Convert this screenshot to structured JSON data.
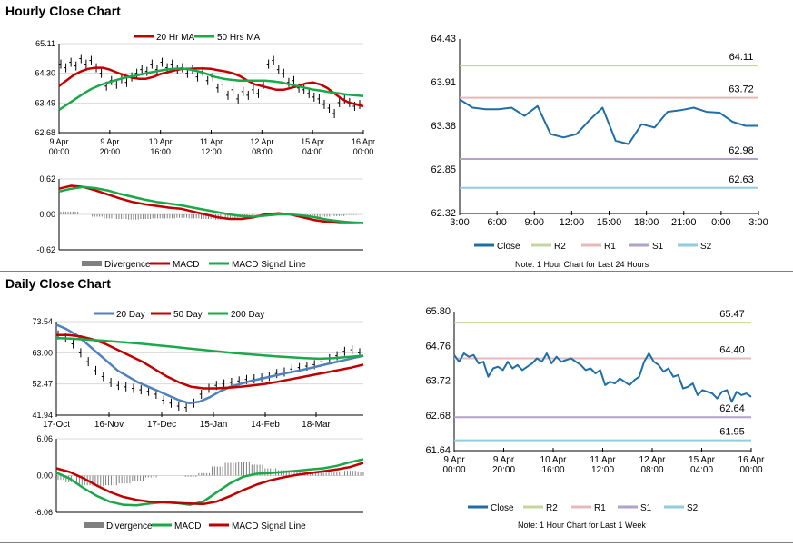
{
  "sections": {
    "hourly_title": "Hourly Close Chart",
    "daily_title": "Daily Close Chart"
  },
  "notes": {
    "hourly": "Note: 1 Hour Chart for Last 24 Hours",
    "daily": "Note: 1 Hour Chart for Last 1 Week"
  },
  "colors": {
    "red": "#c00000",
    "green": "#1aa84a",
    "blue": "#4f81bd",
    "black": "#000000",
    "divergence": "#808080",
    "close": "#1f6ea8",
    "r2": "#c3d69b",
    "r1": "#e6b9b8",
    "s1": "#b3a2c7",
    "s2": "#93cddd"
  },
  "chart_data": [
    {
      "id": "hourly_price",
      "type": "line",
      "legend": [
        "20 Hr MA",
        "50 Hrs MA"
      ],
      "legend_position": "top",
      "ylim": [
        62.68,
        65.11
      ],
      "yticks": [
        "65.11",
        "64.30",
        "63.49",
        "62.68"
      ],
      "xticks": [
        [
          "9 Apr",
          "00:00"
        ],
        [
          "9 Apr",
          "20:00"
        ],
        [
          "10 Apr",
          "16:00"
        ],
        [
          "11 Apr",
          "12:00"
        ],
        [
          "12 Apr",
          "08:00"
        ],
        [
          "15 Apr",
          "04:00"
        ],
        [
          "16 Apr",
          "00:00"
        ]
      ],
      "price": [
        64.55,
        64.45,
        64.6,
        64.5,
        64.7,
        64.55,
        64.65,
        64.45,
        64.3,
        63.95,
        64.1,
        64.0,
        64.15,
        64.05,
        64.2,
        64.3,
        64.4,
        64.35,
        64.55,
        64.4,
        64.6,
        64.45,
        64.55,
        64.4,
        64.45,
        64.3,
        64.4,
        64.2,
        64.35,
        64.1,
        64.2,
        63.9,
        64.0,
        63.7,
        63.85,
        63.6,
        63.8,
        63.7,
        63.85,
        63.75,
        64.0,
        64.55,
        64.65,
        64.4,
        64.3,
        64.05,
        64.1,
        63.9,
        63.85,
        63.75,
        63.65,
        63.6,
        63.45,
        63.35,
        63.2,
        63.5,
        63.6,
        63.5,
        63.4,
        63.45
      ],
      "series": [
        {
          "name": "20 Hr MA",
          "values": [
            63.95,
            64.1,
            64.25,
            64.35,
            64.42,
            64.45,
            64.45,
            64.4,
            64.32,
            64.25,
            64.18,
            64.15,
            64.15,
            64.2,
            64.28,
            64.33,
            64.38,
            64.42,
            64.42,
            64.43,
            64.43,
            64.42,
            64.38,
            64.35,
            64.3,
            64.22,
            64.1,
            64.0,
            63.95,
            63.9,
            63.85,
            63.85,
            63.9,
            63.95,
            64.02,
            64.05,
            64.0,
            63.9,
            63.75,
            63.6,
            63.5,
            63.45,
            63.4
          ]
        },
        {
          "name": "50 Hrs MA",
          "values": [
            63.3,
            63.45,
            63.6,
            63.75,
            63.88,
            63.98,
            64.05,
            64.12,
            64.18,
            64.22,
            64.27,
            64.32,
            64.36,
            64.4,
            64.42,
            64.43,
            64.4,
            64.35,
            64.28,
            64.2,
            64.15,
            64.12,
            64.1,
            64.1,
            64.1,
            64.1,
            64.08,
            64.05,
            64.0,
            63.95,
            63.9,
            63.85,
            63.82,
            63.78,
            63.75,
            63.72,
            63.7,
            63.68
          ]
        }
      ]
    },
    {
      "id": "hourly_macd",
      "type": "line",
      "legend": [
        "Divergence",
        "MACD",
        "MACD Signal Line"
      ],
      "legend_position": "bottom",
      "ylim": [
        -0.62,
        0.62
      ],
      "yticks": [
        "0.62",
        "0.00",
        "-0.62"
      ],
      "series": [
        {
          "name": "MACD",
          "values": [
            0.45,
            0.5,
            0.48,
            0.42,
            0.35,
            0.28,
            0.22,
            0.18,
            0.15,
            0.12,
            0.1,
            0.05,
            0.0,
            -0.05,
            -0.08,
            -0.08,
            -0.05,
            0.0,
            0.02,
            0.0,
            -0.05,
            -0.1,
            -0.13,
            -0.15,
            -0.15,
            -0.15
          ]
        },
        {
          "name": "MACD Signal Line",
          "values": [
            0.4,
            0.45,
            0.48,
            0.46,
            0.42,
            0.36,
            0.31,
            0.26,
            0.22,
            0.19,
            0.16,
            0.12,
            0.08,
            0.04,
            0.0,
            -0.03,
            -0.04,
            -0.02,
            0.0,
            0.0,
            -0.02,
            -0.05,
            -0.09,
            -0.12,
            -0.14,
            -0.15
          ]
        }
      ],
      "divergence": [
        0.05,
        0.05,
        0.0,
        -0.04,
        -0.07,
        -0.08,
        -0.09,
        -0.08,
        -0.07,
        -0.07,
        -0.06,
        -0.07,
        -0.08,
        -0.09,
        -0.08,
        -0.05,
        -0.01,
        0.02,
        0.02,
        0.0,
        -0.03,
        -0.05,
        -0.04,
        -0.03,
        -0.01,
        0.0
      ]
    },
    {
      "id": "hourly_levels",
      "type": "line",
      "ylim": [
        62.32,
        64.43
      ],
      "yticks": [
        "64.43",
        "63.91",
        "63.38",
        "62.85",
        "62.32"
      ],
      "xticks": [
        "3:00",
        "6:00",
        "9:00",
        "12:00",
        "15:00",
        "18:00",
        "21:00",
        "0:00",
        "3:00"
      ],
      "levels": [
        {
          "name": "R2",
          "value": 64.11,
          "label": "64.11"
        },
        {
          "name": "R1",
          "value": 63.72,
          "label": "63.72"
        },
        {
          "name": "S1",
          "value": 62.98,
          "label": "62.98"
        },
        {
          "name": "S2",
          "value": 62.63,
          "label": "62.63"
        }
      ],
      "series": [
        {
          "name": "Close",
          "values": [
            63.7,
            63.6,
            63.58,
            63.58,
            63.6,
            63.5,
            63.62,
            63.28,
            63.24,
            63.28,
            63.45,
            63.6,
            63.2,
            63.16,
            63.4,
            63.36,
            63.55,
            63.57,
            63.6,
            63.55,
            63.54,
            63.43,
            63.38,
            63.38
          ]
        }
      ],
      "legend": [
        "Close",
        "R2",
        "R1",
        "S1",
        "S2"
      ],
      "legend_position": "bottom"
    },
    {
      "id": "daily_price",
      "type": "line",
      "legend": [
        "20 Day",
        "50 Day",
        "200 Day"
      ],
      "legend_position": "top",
      "ylim": [
        41.94,
        73.54
      ],
      "yticks": [
        "73.54",
        "63.00",
        "52.47",
        "41.94"
      ],
      "xticks": [
        "17-Oct",
        "16-Nov",
        "17-Dec",
        "15-Jan",
        "14-Feb",
        "18-Mar"
      ],
      "price": [
        69,
        68,
        66,
        63,
        60,
        57,
        55,
        53,
        52,
        51.5,
        51,
        50.5,
        50,
        49,
        47,
        46,
        45,
        44.5,
        46,
        49,
        51,
        52,
        52.5,
        53,
        53.5,
        54,
        54.2,
        54.5,
        55,
        56,
        56.5,
        57.5,
        58,
        58.5,
        59,
        60,
        61,
        62,
        63.5,
        64,
        63
      ],
      "series": [
        {
          "name": "20 Day",
          "values": [
            72.5,
            71,
            69,
            66,
            63,
            60,
            57,
            55,
            53,
            51.5,
            50,
            48.5,
            47,
            46,
            46.5,
            48,
            50,
            51.5,
            52.5,
            53.5,
            54.2,
            55,
            55.8,
            56.5,
            57.2,
            58,
            58.8,
            59.6,
            60.4,
            61.2,
            62
          ]
        },
        {
          "name": "50 Day",
          "values": [
            69,
            69,
            68.5,
            67.5,
            66,
            64,
            62,
            60,
            57.5,
            55,
            53,
            51.5,
            51,
            51,
            51.2,
            51.5,
            52,
            52.5,
            53.2,
            54,
            54.8,
            55.6,
            56.4,
            57.2,
            58,
            59
          ]
        },
        {
          "name": "200 Day",
          "values": [
            68,
            67.8,
            67.5,
            67.2,
            66.8,
            66.4,
            66,
            65.5,
            65,
            64.5,
            64,
            63.5,
            63,
            62.6,
            62.2,
            61.8,
            61.5,
            61.2,
            61,
            61.2,
            61.6,
            62
          ]
        }
      ]
    },
    {
      "id": "daily_macd",
      "type": "line",
      "legend": [
        "Divergence",
        "MACD",
        "MACD Signal Line"
      ],
      "legend_position": "bottom",
      "ylim": [
        -6.06,
        6.06
      ],
      "yticks": [
        "6.06",
        "0.00",
        "-6.06"
      ],
      "series": [
        {
          "name": "MACD",
          "values": [
            0.5,
            -0.5,
            -2,
            -3.3,
            -4.3,
            -4.8,
            -4.9,
            -4.6,
            -4.4,
            -4.5,
            -4.8,
            -4.3,
            -2.8,
            -1.3,
            -0.2,
            0.3,
            0.4,
            0.6,
            0.8,
            1.0,
            1.2,
            1.6,
            2.2,
            2.7
          ]
        },
        {
          "name": "MACD Signal Line",
          "values": [
            1.2,
            0.6,
            -0.4,
            -1.6,
            -2.7,
            -3.5,
            -4.0,
            -4.3,
            -4.4,
            -4.5,
            -4.6,
            -4.7,
            -4.3,
            -3.4,
            -2.4,
            -1.5,
            -0.8,
            -0.3,
            0.1,
            0.4,
            0.7,
            1.0,
            1.4,
            2.1
          ]
        }
      ],
      "divergence": [
        -0.7,
        -1.1,
        -1.6,
        -1.7,
        -1.6,
        -1.3,
        -0.9,
        -0.3,
        0.0,
        0.0,
        -0.2,
        0.4,
        1.5,
        2.1,
        2.2,
        1.8,
        1.2,
        0.9,
        0.7,
        0.6,
        0.5,
        0.6,
        0.8,
        0.6
      ]
    },
    {
      "id": "daily_levels",
      "type": "line",
      "ylim": [
        61.64,
        65.8
      ],
      "yticks": [
        "65.80",
        "64.76",
        "63.72",
        "62.68",
        "61.64"
      ],
      "xticks": [
        [
          "9 Apr",
          "00:00"
        ],
        [
          "9 Apr",
          "20:00"
        ],
        [
          "10 Apr",
          "16:00"
        ],
        [
          "11 Apr",
          "12:00"
        ],
        [
          "12 Apr",
          "08:00"
        ],
        [
          "15 Apr",
          "04:00"
        ],
        [
          "16 Apr",
          "00:00"
        ]
      ],
      "levels": [
        {
          "name": "R2",
          "value": 65.47,
          "label": "65.47"
        },
        {
          "name": "R1",
          "value": 64.4,
          "label": "64.40"
        },
        {
          "name": "S1",
          "value": 62.64,
          "label": "62.64"
        },
        {
          "name": "S2",
          "value": 61.95,
          "label": "61.95"
        }
      ],
      "series": [
        {
          "name": "Close",
          "values": [
            64.5,
            64.3,
            64.55,
            64.45,
            64.5,
            64.25,
            64.3,
            63.85,
            64.1,
            64.15,
            64.05,
            64.3,
            64.1,
            64.2,
            64.05,
            64.15,
            64.25,
            64.4,
            64.3,
            64.55,
            64.25,
            64.45,
            64.3,
            64.35,
            64.4,
            64.3,
            64.2,
            64.05,
            64.1,
            63.95,
            64.05,
            63.6,
            63.7,
            63.65,
            63.8,
            63.7,
            63.6,
            63.75,
            63.85,
            64.3,
            64.55,
            64.3,
            64.2,
            64.0,
            64.1,
            63.85,
            63.9,
            63.5,
            63.55,
            63.65,
            63.3,
            63.45,
            63.4,
            63.35,
            63.2,
            63.4,
            63.45,
            63.1,
            63.4,
            63.3,
            63.35,
            63.25
          ]
        }
      ],
      "legend": [
        "Close",
        "R2",
        "R1",
        "S1",
        "S2"
      ],
      "legend_position": "bottom"
    }
  ]
}
